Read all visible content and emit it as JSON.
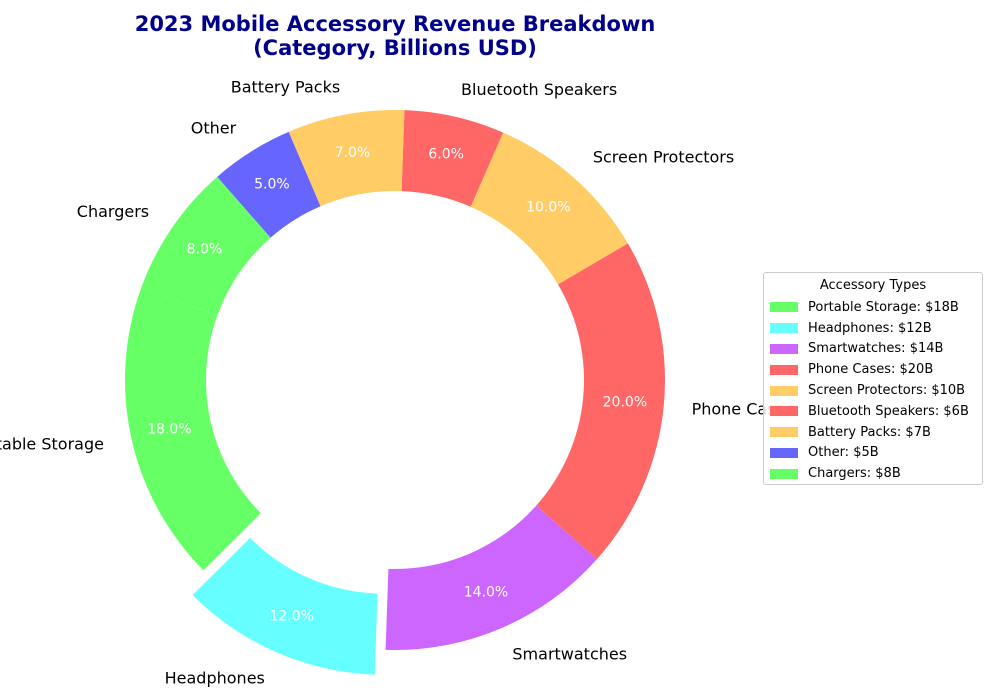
{
  "chart_data": {
    "type": "pie",
    "donut": true,
    "title_lines": [
      "2023 Mobile Accessory Revenue Breakdown",
      "(Category, Billions USD)"
    ],
    "categories": [
      "Portable Storage",
      "Headphones",
      "Smartwatches",
      "Phone Cases",
      "Screen Protectors",
      "Bluetooth Speakers",
      "Battery Packs",
      "Other",
      "Chargers"
    ],
    "values": [
      18,
      12,
      14,
      20,
      10,
      6,
      7,
      5,
      8
    ],
    "percent_labels": [
      "18.0%",
      "12.0%",
      "14.0%",
      "20.0%",
      "10.0%",
      "6.0%",
      "7.0%",
      "5.0%",
      "8.0%"
    ],
    "colors": [
      "#66ff66",
      "#66ffff",
      "#cc66ff",
      "#ff6666",
      "#ffcc66",
      "#ff6666",
      "#ffcc66",
      "#6666ff",
      "#66ff66"
    ],
    "exploded": [
      "Headphones"
    ],
    "start_angle_deg": 160,
    "direction": "counterclockwise",
    "legend": {
      "title": "Accessory Types",
      "placement": "center-right",
      "entries": [
        "Portable Storage: $18B",
        "Headphones: $12B",
        "Smartwatches: $14B",
        "Phone Cases: $20B",
        "Screen Protectors: $10B",
        "Bluetooth Speakers: $6B",
        "Battery Packs: $7B",
        "Other: $5B",
        "Chargers: $8B"
      ]
    }
  }
}
